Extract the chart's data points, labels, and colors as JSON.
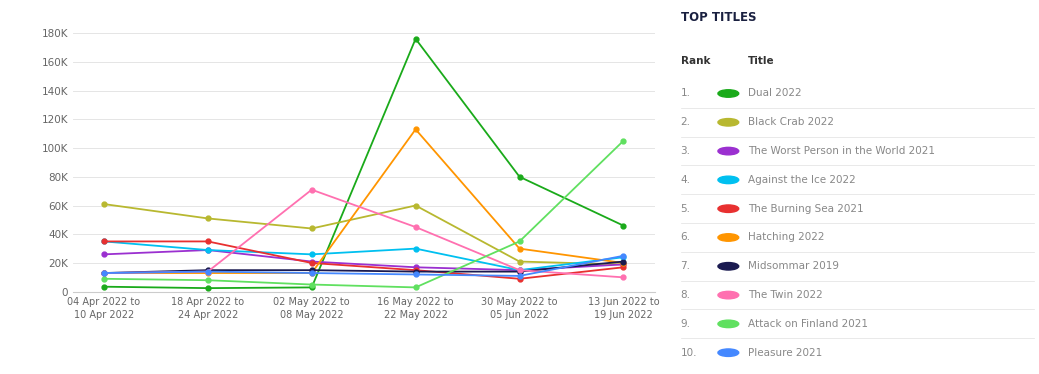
{
  "x_labels": [
    "04 Apr 2022 to\n10 Apr 2022",
    "18 Apr 2022 to\n24 Apr 2022",
    "02 May 2022 to\n08 May 2022",
    "16 May 2022 to\n22 May 2022",
    "30 May 2022 to\n05 Jun 2022",
    "13 Jun 2022 to\n19 Jun 2022"
  ],
  "series": [
    {
      "name": "Dual 2022",
      "color": "#1aaa1a",
      "data": [
        3500,
        2500,
        3000,
        176000,
        80000,
        46000
      ]
    },
    {
      "name": "Black Crab 2022",
      "color": "#b8b830",
      "data": [
        61000,
        51000,
        44000,
        60000,
        21000,
        19000
      ]
    },
    {
      "name": "The Worst Person in the World 2021",
      "color": "#9b30d0",
      "data": [
        26000,
        29000,
        21000,
        17000,
        15000,
        19000
      ]
    },
    {
      "name": "Against the Ice 2022",
      "color": "#00c0f0",
      "data": [
        35000,
        29000,
        26000,
        30000,
        15000,
        24000
      ]
    },
    {
      "name": "The Burning Sea 2021",
      "color": "#e83030",
      "data": [
        35000,
        35000,
        20000,
        15000,
        9000,
        17000
      ]
    },
    {
      "name": "Hatching 2022",
      "color": "#ff9500",
      "data": [
        13000,
        13000,
        13000,
        113000,
        30000,
        20000
      ]
    },
    {
      "name": "Midsommar 2019",
      "color": "#1a1a50",
      "data": [
        13000,
        15000,
        15000,
        14000,
        14000,
        21000
      ]
    },
    {
      "name": "The Twin 2022",
      "color": "#ff70b0",
      "data": [
        13000,
        14000,
        71000,
        45000,
        15000,
        10000
      ]
    },
    {
      "name": "Attack on Finland 2021",
      "color": "#60e060",
      "data": [
        9000,
        8000,
        5000,
        3000,
        35000,
        105000
      ]
    },
    {
      "name": "Pleasure 2021",
      "color": "#4488ff",
      "data": [
        13000,
        14000,
        13000,
        12000,
        11000,
        25000
      ]
    }
  ],
  "ylim": [
    0,
    190000
  ],
  "yticks": [
    0,
    20000,
    40000,
    60000,
    80000,
    100000,
    120000,
    140000,
    160000,
    180000
  ],
  "ytick_labels": [
    "0",
    "20K",
    "40K",
    "60K",
    "80K",
    "100K",
    "120K",
    "140K",
    "160K",
    "180K"
  ],
  "legend_title": "TOP TITLES",
  "legend_rank_header": "Rank",
  "legend_title_header": "Title",
  "background_color": "#ffffff",
  "grid_color": "#e5e5e5"
}
